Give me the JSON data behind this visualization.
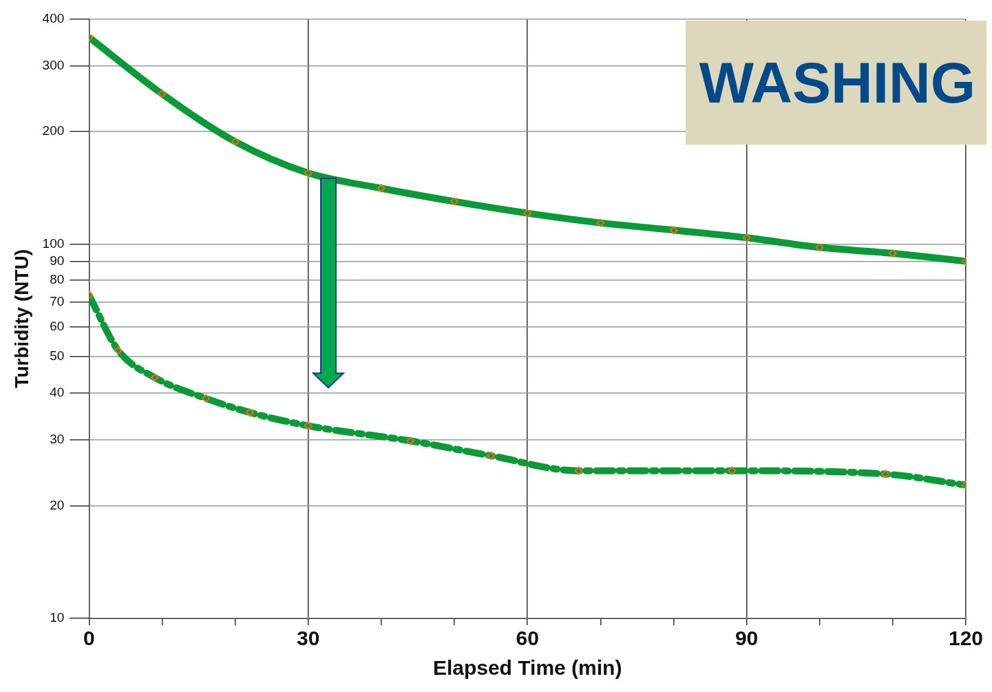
{
  "chart_data": {
    "type": "line",
    "xlabel": "Elapsed Time (min)",
    "ylabel": "Turbidity (NTU)",
    "annotations": [
      "WASHING"
    ],
    "log": "y",
    "grid": true,
    "marker": "diamond",
    "xlim": [
      0,
      120
    ],
    "xticks": [
      0,
      {
        "value": 10,
        "label": null
      },
      {
        "value": 20,
        "label": null
      },
      30,
      {
        "value": 40,
        "label": null
      },
      {
        "value": 50,
        "label": null
      },
      60,
      {
        "value": 70,
        "label": null
      },
      {
        "value": 80,
        "label": null
      },
      90,
      {
        "value": 100,
        "label": null
      },
      {
        "value": 110,
        "label": null
      },
      120
    ],
    "ylim": [
      10,
      400
    ],
    "yticks": [
      10,
      20,
      30,
      40,
      50,
      60,
      70,
      80,
      90,
      100,
      200,
      300,
      400
    ],
    "series": [
      {
        "color": "#0a9a38",
        "line_style": "solid",
        "x": [
          0,
          10,
          20,
          30,
          40,
          50,
          60,
          70,
          80,
          90,
          100,
          110,
          120
        ],
        "values": [
          357,
          252,
          188,
          155,
          141,
          130,
          121,
          114,
          109,
          104,
          98,
          94.5,
          90
        ]
      },
      {
        "color": "#0a9a38",
        "line_style": "dashed",
        "x": [
          0,
          4,
          9,
          16,
          22,
          30,
          44,
          55,
          67,
          88,
          109,
          120
        ],
        "values": [
          73,
          52,
          44,
          38.7,
          35.5,
          32.7,
          29.8,
          27.2,
          24.8,
          24.8,
          24.3,
          22.7
        ]
      }
    ]
  }
}
